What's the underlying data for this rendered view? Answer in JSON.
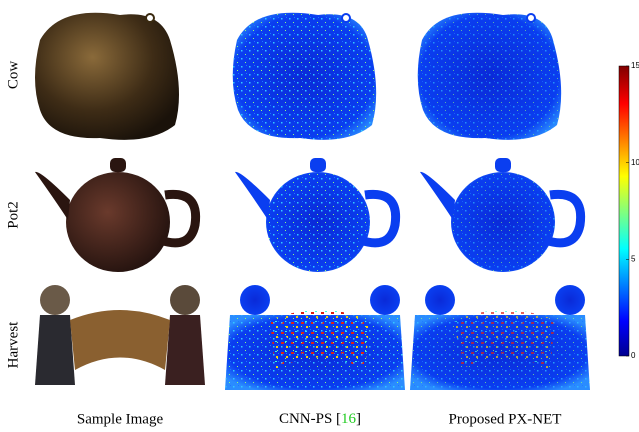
{
  "rows": [
    "Cow",
    "Pot2",
    "Harvest"
  ],
  "columns": [
    {
      "label": "Sample Image"
    },
    {
      "label": "CNN-PS [",
      "ref": "16",
      "close": "]"
    },
    {
      "label": "Proposed PX-NET"
    }
  ],
  "colorbar": {
    "range": [
      0,
      15
    ],
    "ticks": [
      0,
      5,
      10,
      15
    ]
  }
}
